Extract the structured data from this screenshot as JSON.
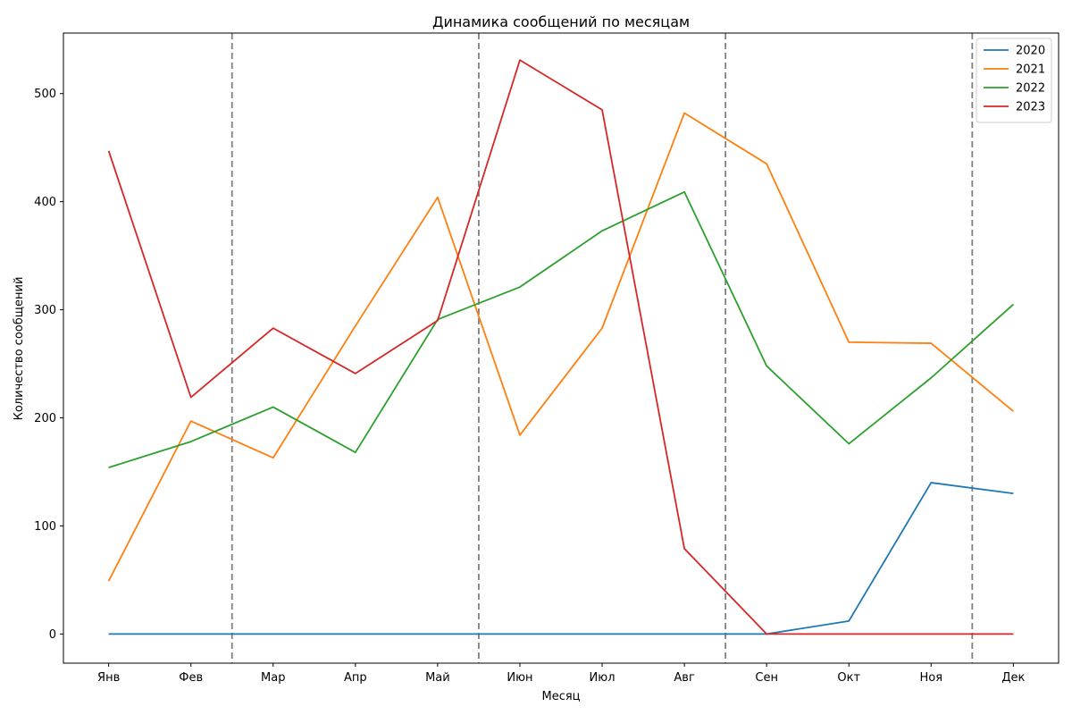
{
  "chart_data": {
    "type": "line",
    "title": "Динамика сообщений по месяцам",
    "xlabel": "Месяц",
    "ylabel": "Количество сообщений",
    "categories": [
      "Янв",
      "Фев",
      "Мар",
      "Апр",
      "Май",
      "Июн",
      "Июл",
      "Авг",
      "Сен",
      "Окт",
      "Ноя",
      "Дек"
    ],
    "ylim": [
      -27,
      556
    ],
    "yticks": [
      0,
      100,
      200,
      300,
      400,
      500
    ],
    "grid": false,
    "legend_position": "top-right",
    "vlines": [
      1.5,
      4.5,
      7.5,
      10.5
    ],
    "vline_color": "#808080",
    "series": [
      {
        "name": "2020",
        "color": "#1f77b4",
        "values": [
          0,
          0,
          0,
          0,
          0,
          0,
          0,
          0,
          0,
          12,
          140,
          130
        ]
      },
      {
        "name": "2021",
        "color": "#ff7f0e",
        "values": [
          49,
          197,
          163,
          285,
          404,
          184,
          283,
          482,
          435,
          270,
          269,
          206
        ]
      },
      {
        "name": "2022",
        "color": "#2ca02c",
        "values": [
          154,
          178,
          210,
          168,
          291,
          321,
          373,
          409,
          248,
          176,
          237,
          305
        ]
      },
      {
        "name": "2023",
        "color": "#d62728",
        "values": [
          447,
          219,
          283,
          241,
          290,
          531,
          485,
          79,
          0,
          0,
          0,
          0
        ]
      }
    ]
  }
}
